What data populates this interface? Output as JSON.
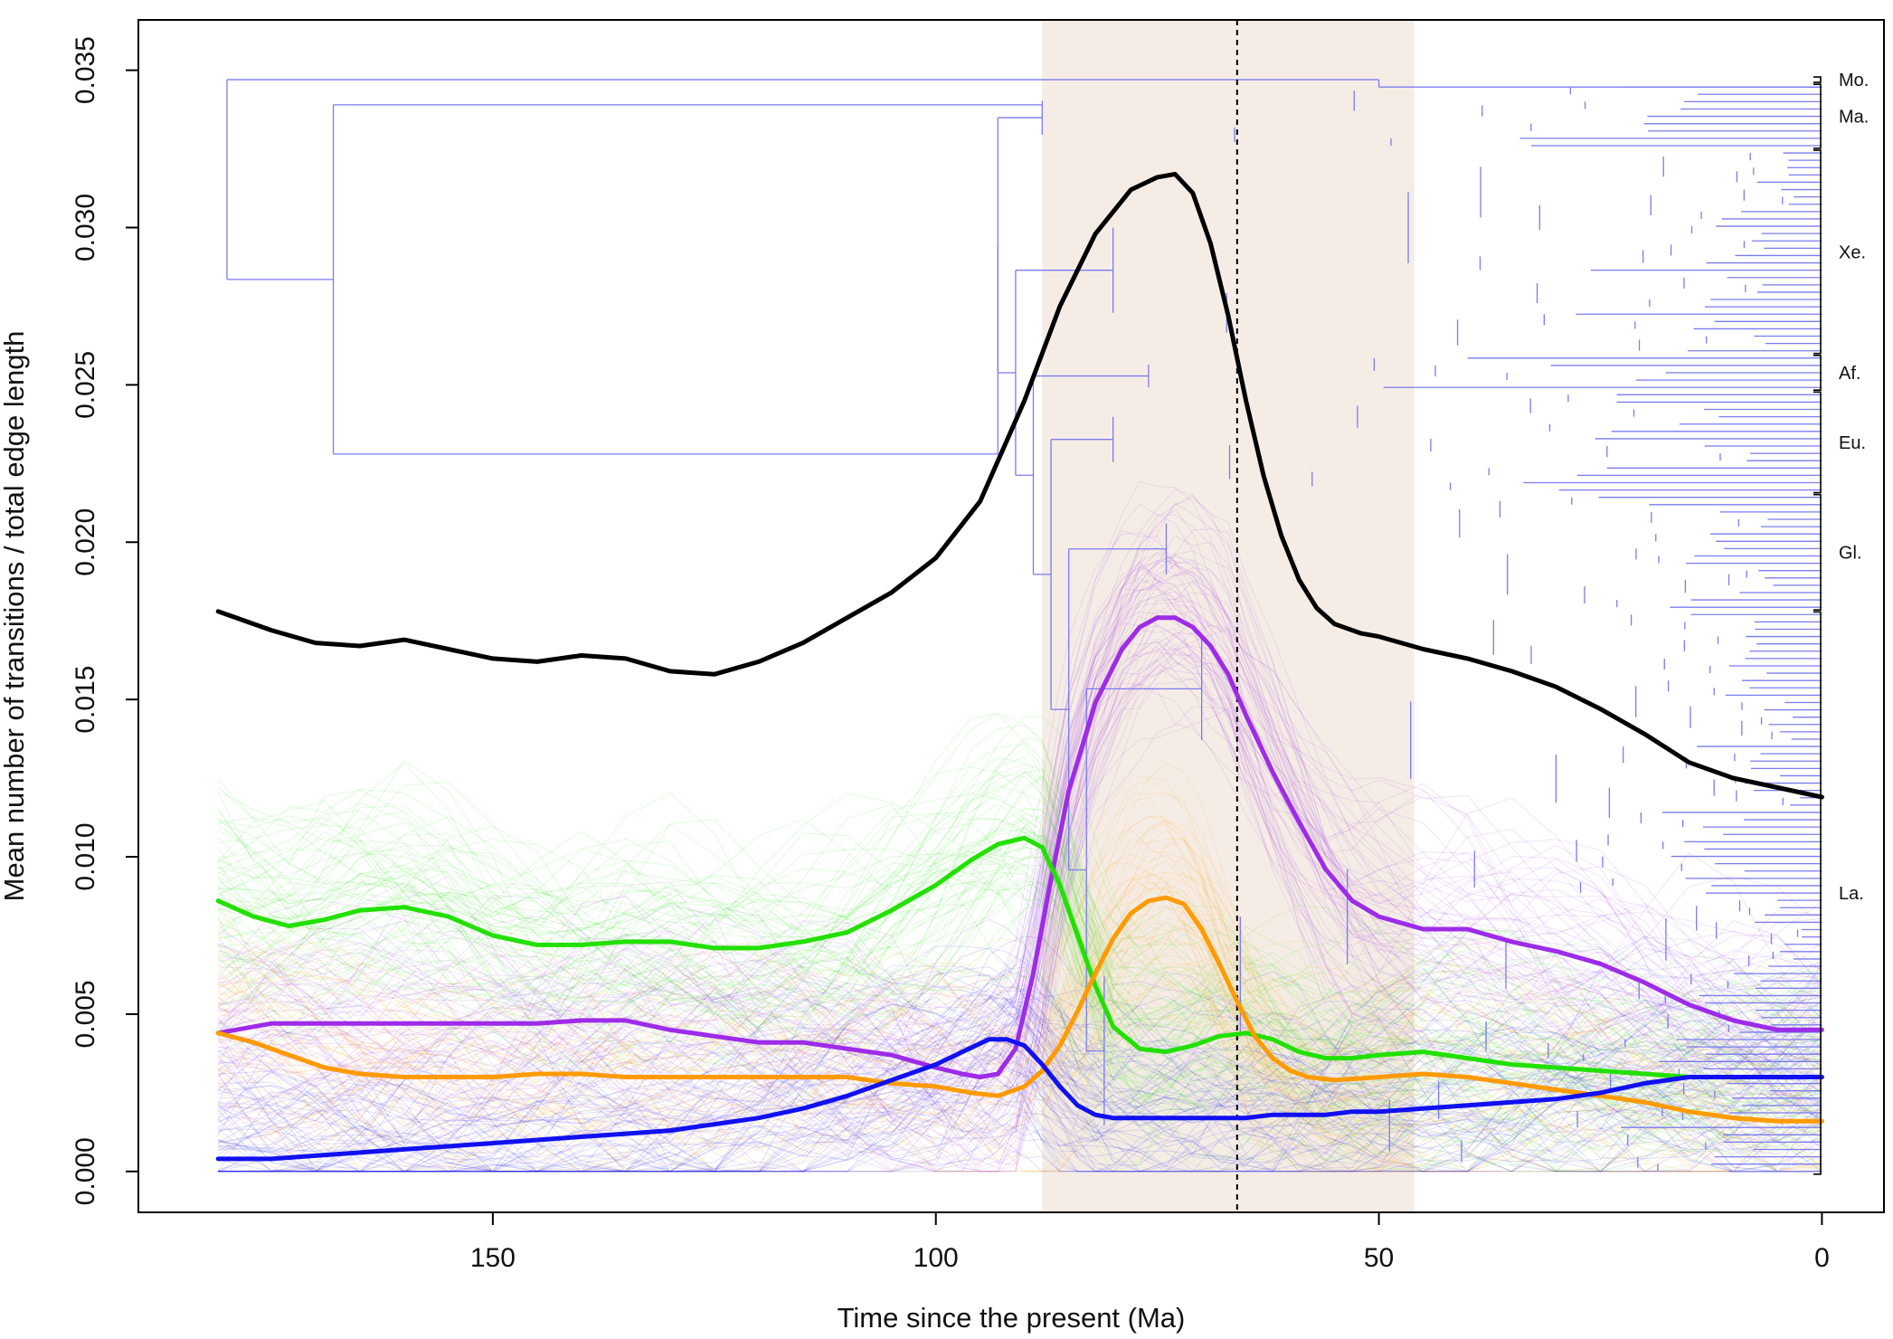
{
  "chart_data": {
    "type": "line",
    "xlabel": "Time since the present (Ma)",
    "ylabel": "Mean number of transitions / total edge length",
    "xlim": [
      190,
      -7
    ],
    "ylim": [
      -0.0013,
      0.0366
    ],
    "x_ticks": [
      150,
      100,
      50,
      0
    ],
    "x_tick_labels": [
      "150",
      "100",
      "50",
      "0"
    ],
    "y_ticks": [
      0.0,
      0.005,
      0.01,
      0.015,
      0.02,
      0.025,
      0.03,
      0.035
    ],
    "y_tick_labels": [
      "0.000",
      "0.005",
      "0.010",
      "0.015",
      "0.020",
      "0.025",
      "0.030",
      "0.035"
    ],
    "shaded_interval": [
      88,
      46
    ],
    "shaded_color": "#f5ede5",
    "reference_line_x": 66,
    "grid": false,
    "legend": "none",
    "tree_color": "#7b7bf0",
    "series": [
      {
        "color": "#000000",
        "x": [
          181,
          175,
          170,
          165,
          160,
          155,
          150,
          145,
          140,
          135,
          130,
          125,
          120,
          115,
          110,
          105,
          100,
          95,
          90,
          86,
          82,
          78,
          75,
          73,
          71,
          69,
          67,
          65,
          63,
          61,
          59,
          57,
          55,
          52,
          50,
          45,
          40,
          35,
          30,
          25,
          20,
          15,
          10,
          5,
          0
        ],
        "y": [
          0.0178,
          0.0172,
          0.0168,
          0.0167,
          0.0169,
          0.0166,
          0.0163,
          0.0162,
          0.0164,
          0.0163,
          0.0159,
          0.0158,
          0.0162,
          0.0168,
          0.0176,
          0.0184,
          0.0195,
          0.0213,
          0.0245,
          0.0275,
          0.0298,
          0.0312,
          0.0316,
          0.0317,
          0.0311,
          0.0295,
          0.0272,
          0.0245,
          0.0221,
          0.0202,
          0.0188,
          0.0179,
          0.0174,
          0.0171,
          0.017,
          0.0166,
          0.0163,
          0.0159,
          0.0154,
          0.0147,
          0.0139,
          0.013,
          0.0125,
          0.0122,
          0.0119
        ]
      },
      {
        "color": "#9d2be8",
        "x": [
          181,
          175,
          170,
          165,
          160,
          155,
          150,
          145,
          140,
          135,
          130,
          125,
          120,
          115,
          110,
          105,
          100,
          97,
          95,
          93,
          91,
          89,
          87,
          85,
          82,
          79,
          77,
          75,
          73,
          71,
          69,
          67,
          65,
          62,
          59,
          56,
          53,
          50,
          45,
          40,
          35,
          30,
          25,
          20,
          15,
          10,
          5,
          0
        ],
        "y": [
          0.0044,
          0.0047,
          0.0047,
          0.0047,
          0.0047,
          0.0047,
          0.0047,
          0.0047,
          0.0048,
          0.0048,
          0.0045,
          0.0043,
          0.0041,
          0.0041,
          0.0039,
          0.0037,
          0.0033,
          0.0031,
          0.003,
          0.0031,
          0.0039,
          0.0063,
          0.0093,
          0.0121,
          0.0149,
          0.0166,
          0.0173,
          0.0176,
          0.0176,
          0.0173,
          0.0167,
          0.0158,
          0.0145,
          0.0127,
          0.0111,
          0.0096,
          0.0086,
          0.0081,
          0.0077,
          0.0077,
          0.0073,
          0.007,
          0.0066,
          0.006,
          0.0053,
          0.0048,
          0.0045,
          0.0045
        ]
      },
      {
        "color": "#22e000",
        "x": [
          181,
          177,
          173,
          169,
          165,
          160,
          155,
          150,
          145,
          140,
          135,
          130,
          125,
          120,
          115,
          110,
          105,
          100,
          96,
          93,
          90,
          88,
          86,
          84,
          82,
          80,
          77,
          74,
          71,
          68,
          65,
          62,
          59,
          56,
          53,
          50,
          45,
          40,
          35,
          30,
          25,
          20,
          15,
          10,
          5,
          0
        ],
        "y": [
          0.0086,
          0.0081,
          0.0078,
          0.008,
          0.0083,
          0.0084,
          0.0081,
          0.0075,
          0.0072,
          0.0072,
          0.0073,
          0.0073,
          0.0071,
          0.0071,
          0.0073,
          0.0076,
          0.0083,
          0.0091,
          0.0099,
          0.0104,
          0.0106,
          0.0103,
          0.0091,
          0.0075,
          0.0059,
          0.0046,
          0.0039,
          0.0038,
          0.004,
          0.0043,
          0.0044,
          0.0042,
          0.0038,
          0.0036,
          0.0036,
          0.0037,
          0.0038,
          0.0036,
          0.0034,
          0.0033,
          0.0032,
          0.0031,
          0.003,
          0.003,
          0.003,
          0.003
        ]
      },
      {
        "color": "#ff9a00",
        "x": [
          181,
          177,
          173,
          169,
          165,
          160,
          155,
          150,
          145,
          140,
          135,
          130,
          125,
          120,
          115,
          110,
          105,
          100,
          96,
          93,
          90,
          88,
          86,
          84,
          82,
          80,
          78,
          76,
          74,
          72,
          70,
          68,
          66,
          64,
          62,
          60,
          58,
          55,
          50,
          45,
          40,
          35,
          30,
          25,
          20,
          15,
          10,
          5,
          0
        ],
        "y": [
          0.0044,
          0.0041,
          0.0037,
          0.0033,
          0.0031,
          0.003,
          0.003,
          0.003,
          0.0031,
          0.0031,
          0.003,
          0.003,
          0.003,
          0.003,
          0.003,
          0.003,
          0.0028,
          0.0027,
          0.0025,
          0.0024,
          0.0027,
          0.0032,
          0.004,
          0.0051,
          0.0063,
          0.0074,
          0.0082,
          0.0086,
          0.0087,
          0.0085,
          0.0077,
          0.0066,
          0.0054,
          0.0043,
          0.0036,
          0.0032,
          0.003,
          0.0029,
          0.003,
          0.0031,
          0.003,
          0.0028,
          0.0026,
          0.0024,
          0.0022,
          0.0019,
          0.0017,
          0.0016,
          0.0016
        ]
      },
      {
        "color": "#1010f0",
        "x": [
          181,
          175,
          170,
          165,
          160,
          155,
          150,
          145,
          140,
          135,
          130,
          125,
          120,
          115,
          110,
          105,
          100,
          97,
          94,
          92,
          90,
          88,
          86,
          84,
          82,
          80,
          77,
          74,
          71,
          68,
          65,
          62,
          59,
          56,
          53,
          50,
          45,
          40,
          35,
          30,
          25,
          20,
          15,
          10,
          5,
          0
        ],
        "y": [
          0.0004,
          0.0004,
          0.0005,
          0.0006,
          0.0007,
          0.0008,
          0.0009,
          0.001,
          0.0011,
          0.0012,
          0.0013,
          0.0015,
          0.0017,
          0.002,
          0.0024,
          0.0029,
          0.0034,
          0.0038,
          0.0042,
          0.0042,
          0.004,
          0.0034,
          0.0027,
          0.0021,
          0.0018,
          0.0017,
          0.0017,
          0.0017,
          0.0017,
          0.0017,
          0.0017,
          0.0018,
          0.0018,
          0.0018,
          0.0019,
          0.0019,
          0.002,
          0.0021,
          0.0022,
          0.0023,
          0.0025,
          0.0028,
          0.003,
          0.003,
          0.003,
          0.003
        ]
      }
    ],
    "clade_labels": [
      "Mo.",
      "Ma.",
      "Xe.",
      "Af.",
      "Eu.",
      "Gl.",
      "La."
    ]
  }
}
